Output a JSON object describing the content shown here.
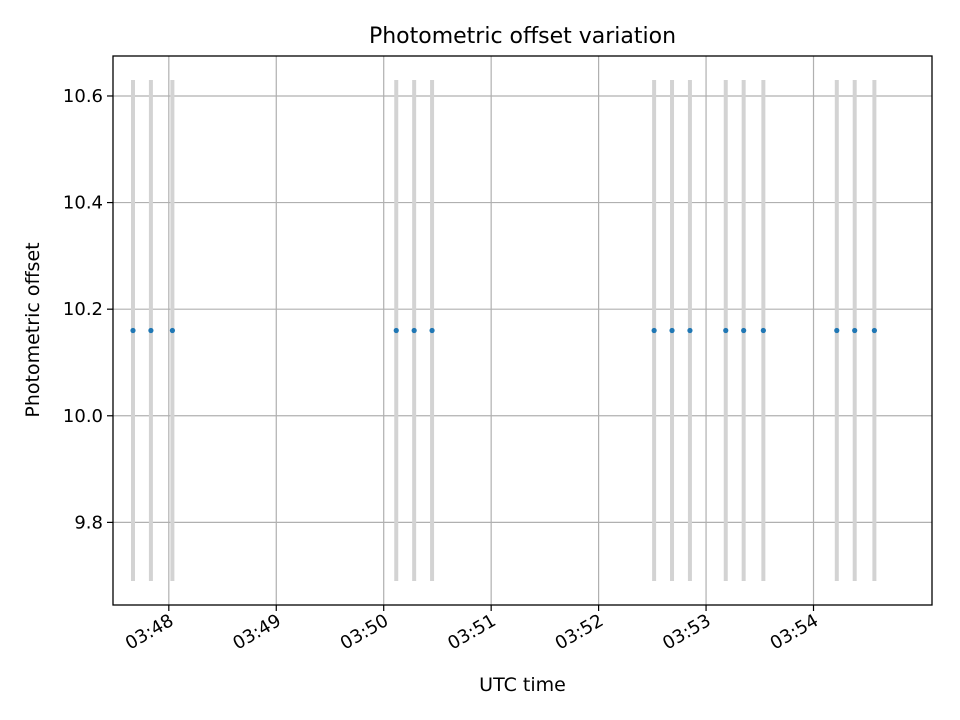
{
  "chart_data": {
    "type": "scatter",
    "title": "Photometric offset variation",
    "xlabel": "UTC time",
    "ylabel": "Photometric offset",
    "xlim": [
      "03:47:40",
      "03:54:55"
    ],
    "ylim": [
      9.645,
      10.675
    ],
    "x_ticks": [
      "03:48",
      "03:49",
      "03:50",
      "03:51",
      "03:52",
      "03:53",
      "03:54"
    ],
    "y_ticks": [
      9.8,
      10.0,
      10.2,
      10.4,
      10.6
    ],
    "grid": true,
    "points": [
      {
        "x": "03:47:40",
        "y": 10.16,
        "err": 0.47
      },
      {
        "x": "03:47:50",
        "y": 10.16,
        "err": 0.47
      },
      {
        "x": "03:48:02",
        "y": 10.16,
        "err": 0.47
      },
      {
        "x": "03:50:07",
        "y": 10.16,
        "err": 0.47
      },
      {
        "x": "03:50:17",
        "y": 10.16,
        "err": 0.47
      },
      {
        "x": "03:50:27",
        "y": 10.16,
        "err": 0.47
      },
      {
        "x": "03:52:31",
        "y": 10.16,
        "err": 0.47
      },
      {
        "x": "03:52:41",
        "y": 10.16,
        "err": 0.47
      },
      {
        "x": "03:52:51",
        "y": 10.16,
        "err": 0.47
      },
      {
        "x": "03:53:11",
        "y": 10.16,
        "err": 0.47
      },
      {
        "x": "03:53:21",
        "y": 10.16,
        "err": 0.47
      },
      {
        "x": "03:53:32",
        "y": 10.16,
        "err": 0.47
      },
      {
        "x": "03:54:13",
        "y": 10.16,
        "err": 0.47
      },
      {
        "x": "03:54:23",
        "y": 10.16,
        "err": 0.47
      },
      {
        "x": "03:54:34",
        "y": 10.16,
        "err": 0.47
      }
    ],
    "colors": {
      "points": "#1f77b4",
      "error_bars": "#d3d3d3",
      "grid": "#b0b0b0",
      "axes": "#000000"
    }
  }
}
